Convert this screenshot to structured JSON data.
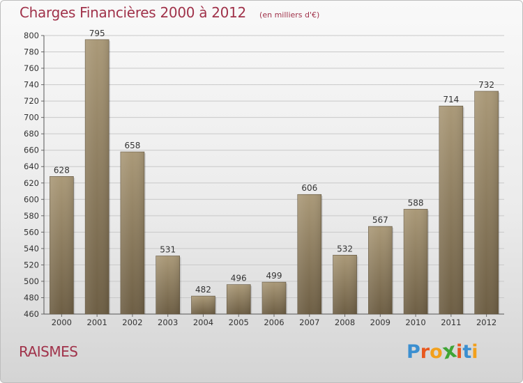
{
  "header": {
    "title": "Charges Financières 2000 à 2012",
    "subtitle": "(en milliers d'€)"
  },
  "footer": {
    "town": "RAISMES",
    "brand_letters": [
      "P",
      "r",
      "o",
      "x",
      "i",
      "t",
      "i"
    ],
    "brand_colors": [
      "#3b8fd0",
      "#e8581e",
      "#f2a01c",
      "#3fa535",
      "#e8581e",
      "#3b8fd0",
      "#f2a01c"
    ]
  },
  "colors": {
    "bar_top": "#aa9978",
    "bar_bottom": "#6d5e44",
    "grid": "#c8c8c8",
    "axis_text": "#333333",
    "title": "#a0324a"
  },
  "chart_data": {
    "type": "bar",
    "title": "Charges Financières 2000 à 2012",
    "subtitle": "(en milliers d'€)",
    "categories": [
      "2000",
      "2001",
      "2002",
      "2003",
      "2004",
      "2005",
      "2006",
      "2007",
      "2008",
      "2009",
      "2010",
      "2011",
      "2012"
    ],
    "values": [
      628,
      795,
      658,
      531,
      482,
      496,
      499,
      606,
      532,
      567,
      588,
      714,
      732
    ],
    "ylim": [
      460,
      800
    ],
    "yticks": [
      460,
      480,
      500,
      520,
      540,
      560,
      580,
      600,
      620,
      640,
      660,
      680,
      700,
      720,
      740,
      760,
      780,
      800
    ],
    "grid": true,
    "data_labels": true
  }
}
